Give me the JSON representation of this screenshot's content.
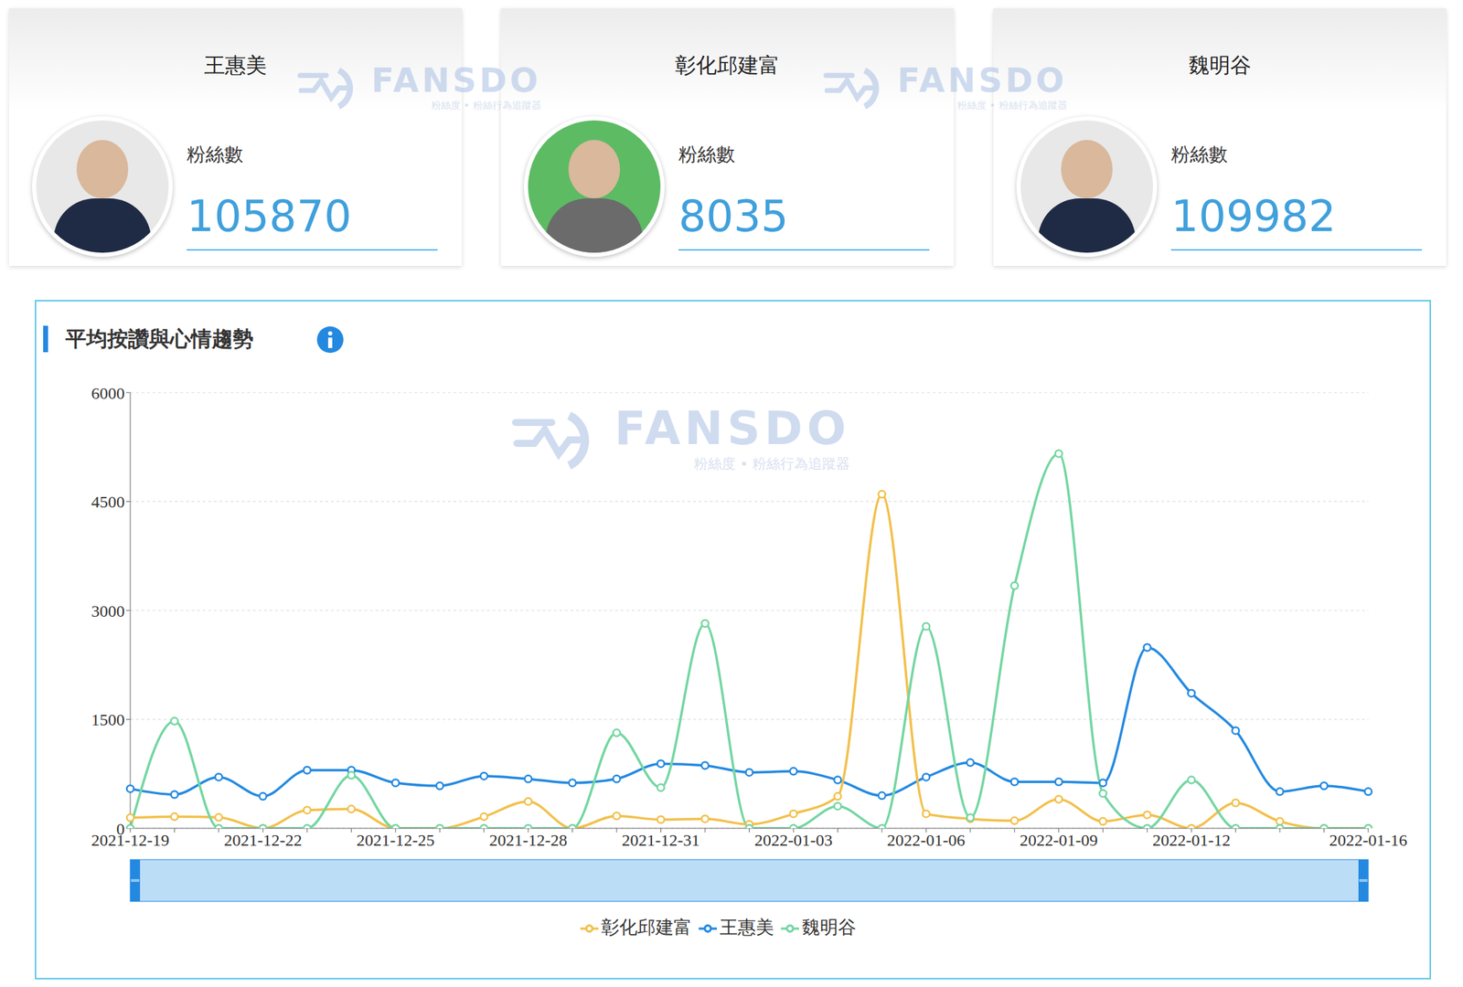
{
  "cards": [
    {
      "name": "王惠美",
      "label": "粉絲數",
      "value": 105870
    },
    {
      "name": "彰化邱建富",
      "label": "粉絲數",
      "value": 8035
    },
    {
      "name": "魏明谷",
      "label": "粉絲數",
      "value": 109982
    }
  ],
  "watermark": {
    "title": "FANSDO",
    "subtitle": "粉絲度 • 粉絲行為追蹤器"
  },
  "chart_data": {
    "type": "line",
    "title": "平均按讚與心情趨勢",
    "categories": [
      "2021-12-19",
      null,
      null,
      "2021-12-22",
      null,
      null,
      "2021-12-25",
      null,
      null,
      "2021-12-28",
      null,
      null,
      "2021-12-31",
      null,
      null,
      "2022-01-03",
      null,
      null,
      "2022-01-06",
      null,
      null,
      "2022-01-09",
      null,
      null,
      "2022-01-12",
      null,
      null,
      null,
      "2022-01-16"
    ],
    "series": [
      {
        "name": "王惠美",
        "color": "#2389e0",
        "values": [
          545,
          465,
          705,
          440,
          800,
          800,
          625,
          585,
          720,
          680,
          625,
          680,
          890,
          865,
          770,
          785,
          665,
          450,
          705,
          905,
          640,
          640,
          625,
          2490,
          1860,
          1345,
          505,
          585,
          505
        ]
      },
      {
        "name": "彰化邱建富",
        "color": "#f2c04c",
        "values": [
          145,
          160,
          150,
          0,
          250,
          265,
          0,
          0,
          160,
          370,
          0,
          170,
          120,
          130,
          55,
          200,
          440,
          4600,
          200,
          130,
          105,
          400,
          95,
          185,
          0,
          350,
          95,
          0,
          0
        ]
      },
      {
        "name": "魏明谷",
        "color": "#74d6a2",
        "values": [
          0,
          1475,
          0,
          0,
          0,
          730,
          0,
          0,
          0,
          0,
          0,
          1315,
          560,
          2820,
          0,
          0,
          305,
          0,
          2780,
          145,
          3340,
          5160,
          480,
          0,
          665,
          0,
          0,
          0,
          0
        ]
      }
    ],
    "ylim": [
      0,
      6000
    ],
    "yticks": [
      0,
      1500,
      3000,
      4500,
      6000
    ],
    "grid": true,
    "legend": "bottom",
    "marker": "circle",
    "line_style": "solid"
  }
}
